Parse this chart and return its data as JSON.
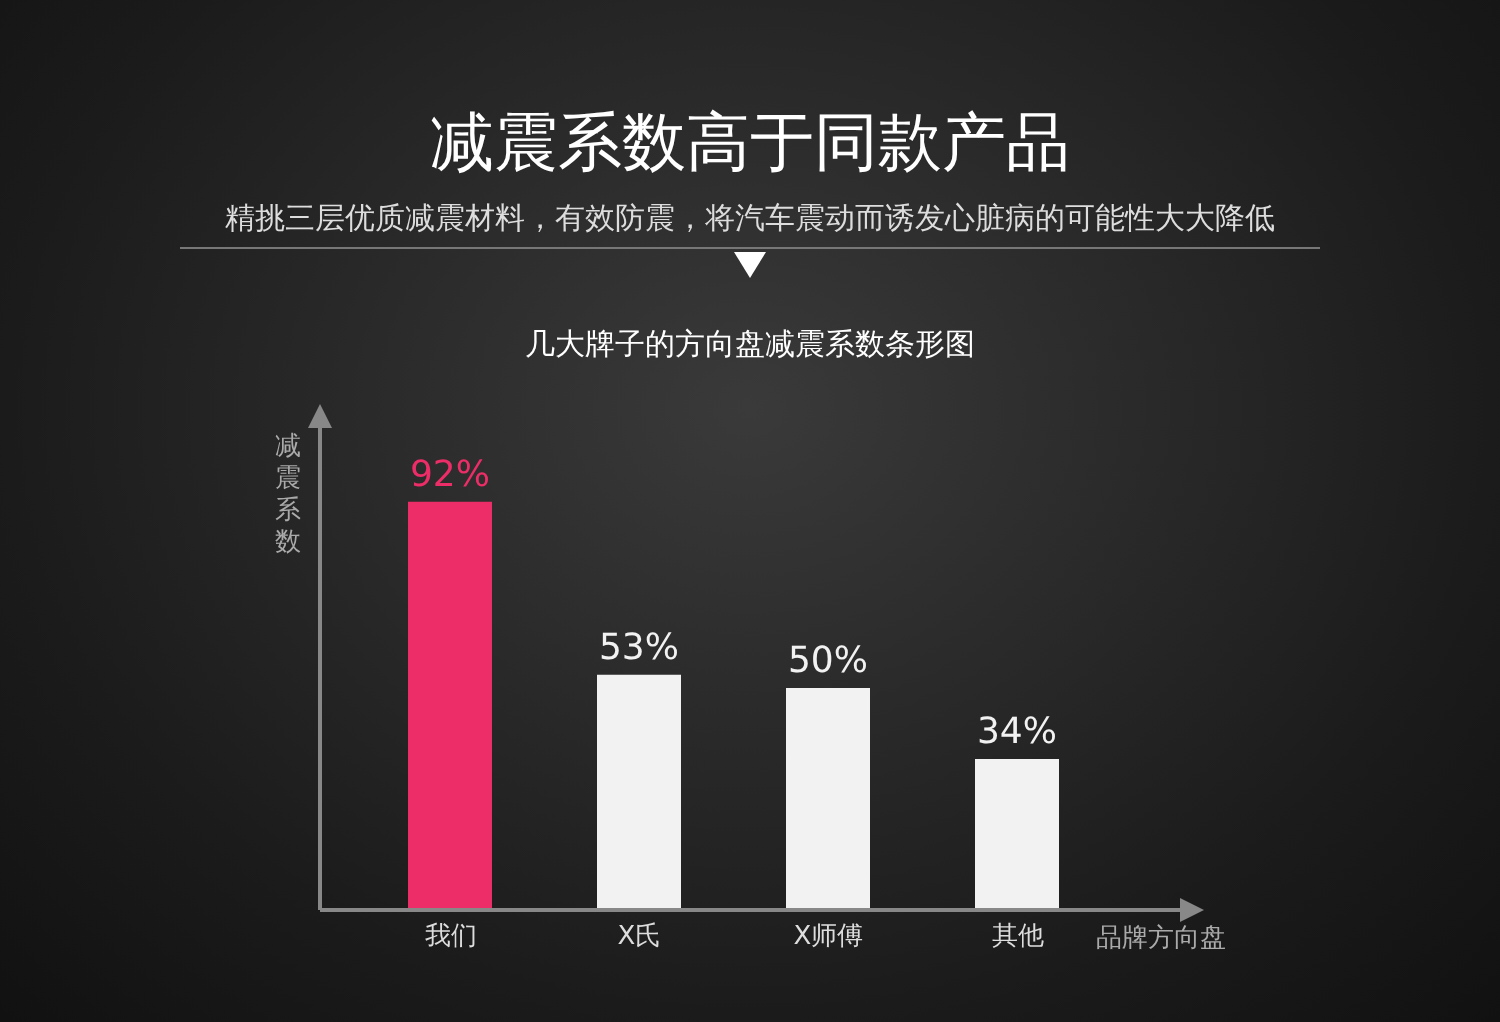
{
  "chart_data": {
    "type": "bar",
    "title": "减震系数高于同款产品",
    "subtitle": "精挑三层优质减震材料，有效防震，将汽车震动而诱发心脏病的可能性大大降低",
    "annotations": [
      "几大牌子的方向盘减震系数条形图"
    ],
    "xlabel": "品牌方向盘",
    "ylabel": "减震系数",
    "categories": [
      "我们",
      "X氏",
      "X师傅",
      "其他"
    ],
    "values": [
      92,
      53,
      50,
      34
    ],
    "colors": [
      "#ec2d67",
      "#f2f2f2",
      "#f2f2f2",
      "#f2f2f2"
    ],
    "value_labels": [
      "92%",
      "53%",
      "50%",
      "34%"
    ],
    "tick_labels": "x"
  }
}
